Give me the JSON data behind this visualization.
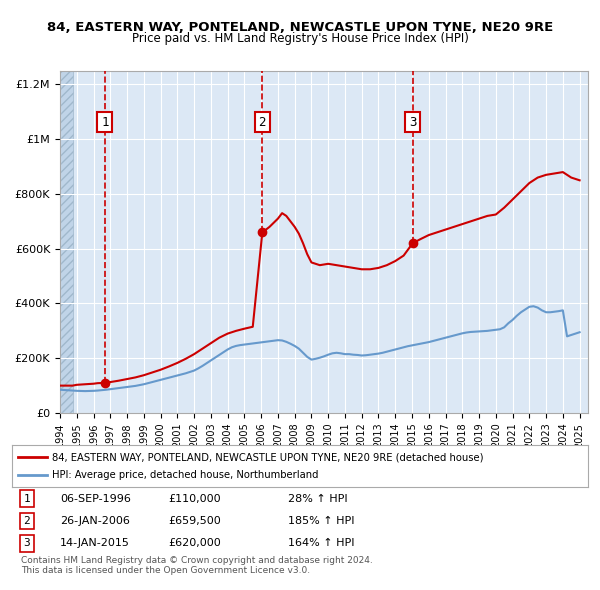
{
  "title1": "84, EASTERN WAY, PONTELAND, NEWCASTLE UPON TYNE, NE20 9RE",
  "title2": "Price paid vs. HM Land Registry's House Price Index (HPI)",
  "legend_line1": "84, EASTERN WAY, PONTELAND, NEWCASTLE UPON TYNE, NE20 9RE (detached house)",
  "legend_line2": "HPI: Average price, detached house, Northumberland",
  "footer": "Contains HM Land Registry data © Crown copyright and database right 2024.\nThis data is licensed under the Open Government Licence v3.0.",
  "sale_points": [
    {
      "num": 1,
      "date": "06-SEP-1996",
      "price": 110000,
      "pct": "28%",
      "x_year": 1996.68
    },
    {
      "num": 2,
      "date": "26-JAN-2006",
      "price": 659500,
      "pct": "185%",
      "x_year": 2006.07
    },
    {
      "num": 3,
      "date": "14-JAN-2015",
      "price": 620000,
      "pct": "164%",
      "x_year": 2015.04
    }
  ],
  "price_color": "#cc0000",
  "hpi_color": "#6699cc",
  "hatch_color": "#c8d8e8",
  "hatch_start": 1994.0,
  "hatch_end": 1994.75,
  "ylim": [
    0,
    1250000
  ],
  "xlim": [
    1994.0,
    2025.5
  ],
  "yticks": [
    0,
    200000,
    400000,
    600000,
    800000,
    1000000,
    1200000
  ],
  "ytick_labels": [
    "£0",
    "£200K",
    "£400K",
    "£600K",
    "£800K",
    "£1M",
    "£1.2M"
  ],
  "xticks": [
    1994,
    1995,
    1996,
    1997,
    1998,
    1999,
    2000,
    2001,
    2002,
    2003,
    2004,
    2005,
    2006,
    2007,
    2008,
    2009,
    2010,
    2011,
    2012,
    2013,
    2014,
    2015,
    2016,
    2017,
    2018,
    2019,
    2020,
    2021,
    2022,
    2023,
    2024,
    2025
  ],
  "hpi_data": {
    "x": [
      1994.0,
      1994.25,
      1994.5,
      1994.75,
      1995.0,
      1995.25,
      1995.5,
      1995.75,
      1996.0,
      1996.25,
      1996.5,
      1996.75,
      1997.0,
      1997.25,
      1997.5,
      1997.75,
      1998.0,
      1998.25,
      1998.5,
      1998.75,
      1999.0,
      1999.25,
      1999.5,
      1999.75,
      2000.0,
      2000.25,
      2000.5,
      2000.75,
      2001.0,
      2001.25,
      2001.5,
      2001.75,
      2002.0,
      2002.25,
      2002.5,
      2002.75,
      2003.0,
      2003.25,
      2003.5,
      2003.75,
      2004.0,
      2004.25,
      2004.5,
      2004.75,
      2005.0,
      2005.25,
      2005.5,
      2005.75,
      2006.0,
      2006.25,
      2006.5,
      2006.75,
      2007.0,
      2007.25,
      2007.5,
      2007.75,
      2008.0,
      2008.25,
      2008.5,
      2008.75,
      2009.0,
      2009.25,
      2009.5,
      2009.75,
      2010.0,
      2010.25,
      2010.5,
      2010.75,
      2011.0,
      2011.25,
      2011.5,
      2011.75,
      2012.0,
      2012.25,
      2012.5,
      2012.75,
      2013.0,
      2013.25,
      2013.5,
      2013.75,
      2014.0,
      2014.25,
      2014.5,
      2014.75,
      2015.0,
      2015.25,
      2015.5,
      2015.75,
      2016.0,
      2016.25,
      2016.5,
      2016.75,
      2017.0,
      2017.25,
      2017.5,
      2017.75,
      2018.0,
      2018.25,
      2018.5,
      2018.75,
      2019.0,
      2019.25,
      2019.5,
      2019.75,
      2020.0,
      2020.25,
      2020.5,
      2020.75,
      2021.0,
      2021.25,
      2021.5,
      2021.75,
      2022.0,
      2022.25,
      2022.5,
      2022.75,
      2023.0,
      2023.25,
      2023.5,
      2023.75,
      2024.0,
      2024.25,
      2024.5,
      2024.75,
      2025.0
    ],
    "y": [
      85000,
      84000,
      83000,
      82000,
      81000,
      80500,
      80000,
      80500,
      81000,
      82000,
      83500,
      85000,
      87000,
      89000,
      91000,
      93000,
      95000,
      97000,
      99000,
      102000,
      105000,
      109000,
      113000,
      117000,
      121000,
      125000,
      129000,
      133000,
      137000,
      141000,
      145000,
      150000,
      155000,
      163000,
      172000,
      182000,
      192000,
      202000,
      212000,
      222000,
      232000,
      240000,
      245000,
      248000,
      250000,
      252000,
      254000,
      256000,
      258000,
      260000,
      262000,
      264000,
      266000,
      265000,
      260000,
      253000,
      245000,
      235000,
      220000,
      205000,
      195000,
      198000,
      202000,
      207000,
      213000,
      218000,
      220000,
      218000,
      215000,
      215000,
      213000,
      212000,
      210000,
      211000,
      213000,
      215000,
      217000,
      220000,
      224000,
      228000,
      232000,
      236000,
      240000,
      244000,
      247000,
      250000,
      253000,
      256000,
      259000,
      263000,
      267000,
      271000,
      275000,
      279000,
      283000,
      287000,
      291000,
      294000,
      296000,
      297000,
      298000,
      299000,
      300000,
      302000,
      304000,
      306000,
      313000,
      328000,
      340000,
      355000,
      368000,
      378000,
      388000,
      390000,
      385000,
      375000,
      368000,
      368000,
      370000,
      372000,
      375000,
      280000,
      285000,
      290000,
      295000
    ]
  },
  "price_data": {
    "x": [
      1994.0,
      1994.25,
      1994.5,
      1994.75,
      1995.0,
      1995.5,
      1996.0,
      1996.25,
      1996.68,
      1997.0,
      1997.5,
      1998.0,
      1998.5,
      1999.0,
      1999.5,
      2000.0,
      2000.5,
      2001.0,
      2001.5,
      2002.0,
      2002.5,
      2003.0,
      2003.5,
      2004.0,
      2004.5,
      2005.0,
      2005.5,
      2006.07,
      2006.5,
      2007.0,
      2007.25,
      2007.5,
      2007.75,
      2008.0,
      2008.25,
      2008.5,
      2008.75,
      2009.0,
      2009.5,
      2010.0,
      2010.5,
      2011.0,
      2011.5,
      2012.0,
      2012.5,
      2013.0,
      2013.5,
      2014.0,
      2014.5,
      2015.04,
      2015.5,
      2016.0,
      2016.5,
      2017.0,
      2017.5,
      2018.0,
      2018.5,
      2019.0,
      2019.5,
      2020.0,
      2020.5,
      2021.0,
      2021.5,
      2022.0,
      2022.5,
      2023.0,
      2023.5,
      2024.0,
      2024.5,
      2025.0
    ],
    "y": [
      100000,
      100000,
      100000,
      100000,
      103000,
      105000,
      107000,
      109000,
      110000,
      113000,
      118000,
      124000,
      130000,
      138000,
      148000,
      158000,
      170000,
      183000,
      198000,
      215000,
      235000,
      255000,
      275000,
      290000,
      300000,
      308000,
      315000,
      659500,
      680000,
      710000,
      730000,
      720000,
      700000,
      680000,
      655000,
      620000,
      580000,
      550000,
      540000,
      545000,
      540000,
      535000,
      530000,
      525000,
      525000,
      530000,
      540000,
      555000,
      575000,
      620000,
      635000,
      650000,
      660000,
      670000,
      680000,
      690000,
      700000,
      710000,
      720000,
      725000,
      750000,
      780000,
      810000,
      840000,
      860000,
      870000,
      875000,
      880000,
      860000,
      850000
    ]
  }
}
